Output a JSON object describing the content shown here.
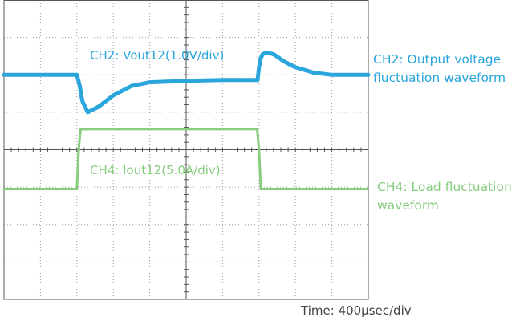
{
  "chart_data": {
    "type": "line",
    "title": "",
    "grid": true,
    "divisions": {
      "x": 10,
      "y": 8
    },
    "xlabel": "Time: 400μsec/div",
    "x_unit": "div",
    "xlim": [
      0,
      10
    ],
    "ylim": [
      -4,
      4
    ],
    "colors": {
      "ch2": "#2aa6dc",
      "ch4": "#86cd7e",
      "grid": "#555555",
      "dots": "#9a9a9a"
    },
    "series": [
      {
        "name": "CH2: Vout12(1.0V/div)",
        "note": "CH2: Output voltage fluctuation waveform",
        "x": [
          0,
          2.0,
          2.08,
          2.15,
          2.3,
          2.6,
          3.0,
          3.5,
          4.0,
          5.0,
          6.0,
          6.96,
          7.0,
          7.05,
          7.1,
          7.2,
          7.4,
          7.7,
          8.0,
          8.5,
          9.0,
          10.0
        ],
        "y": [
          2.0,
          2.0,
          1.7,
          1.3,
          1.0,
          1.15,
          1.45,
          1.7,
          1.8,
          1.84,
          1.86,
          1.86,
          2.2,
          2.45,
          2.55,
          2.6,
          2.55,
          2.35,
          2.2,
          2.06,
          2.0,
          2.0
        ]
      },
      {
        "name": "CH4: Iout12(5.0A/div)",
        "note": "CH4: Load fluctuation waveform",
        "x": [
          0,
          2.0,
          2.05,
          2.1,
          6.95,
          7.0,
          7.05,
          10.0
        ],
        "y": [
          -1.05,
          -1.05,
          0.0,
          0.55,
          0.55,
          0.0,
          -1.05,
          -1.05
        ]
      }
    ]
  },
  "labels": {
    "ch2_trace": "CH2: Vout12(1.0V/div)",
    "ch4_trace": "CH4: Iout12(5.0A/div)",
    "ch2_note_line1": "CH2: Output voltage",
    "ch2_note_line2": "fluctuation waveform",
    "ch4_note_line1": "CH4: Load fluctuation",
    "ch4_note_line2": "waveform",
    "time": "Time: 400μsec/div"
  }
}
